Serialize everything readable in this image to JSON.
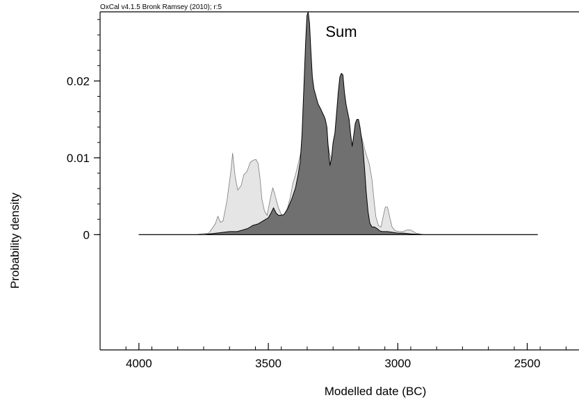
{
  "credit": "OxCal v4.1.5 Bronk Ramsey (2010); r:5",
  "chart_data": {
    "type": "area",
    "title": "Sum",
    "xlabel": "Modelled date (BC)",
    "ylabel": "Probability density",
    "x_reversed": true,
    "xlim": [
      4150,
      2300
    ],
    "ylim": [
      -0.015,
      0.029
    ],
    "x_ticks": [
      4000,
      3500,
      3000,
      2500
    ],
    "x_tick_labels": [
      "4000",
      "3500",
      "3000",
      "2500"
    ],
    "y_ticks": [
      0,
      0.01,
      0.02
    ],
    "y_tick_labels": [
      "0",
      "0.01",
      "0.02"
    ],
    "baseline_range": [
      4000,
      2460
    ],
    "colors": {
      "prior_fill": "#e5e5e5",
      "prior_stroke": "#7a7a7a",
      "posterior_fill": "#707070",
      "posterior_stroke": "#000000",
      "axis": "#000000"
    },
    "series": [
      {
        "kind": "prior",
        "x": [
          4000,
          3780,
          3760,
          3730,
          3705,
          3695,
          3685,
          3675,
          3660,
          3645,
          3638,
          3628,
          3618,
          3605,
          3595,
          3583,
          3570,
          3558,
          3548,
          3540,
          3533,
          3525,
          3515,
          3505,
          3493,
          3483,
          3476,
          3468,
          3460,
          3448,
          3435,
          3425,
          3415,
          3405,
          3395,
          3385,
          3376,
          3366,
          3356,
          3346,
          3340,
          3335,
          3325,
          3315,
          3305,
          3295,
          3287,
          3280,
          3272,
          3264,
          3255,
          3247,
          3240,
          3232,
          3225,
          3217,
          3210,
          3202,
          3195,
          3187,
          3180,
          3172,
          3164,
          3157,
          3150,
          3142,
          3134,
          3127,
          3118,
          3110,
          3100,
          3092,
          3085,
          3075,
          3065,
          3056,
          3048,
          3040,
          3032,
          3022,
          3010,
          2995,
          2980,
          2965,
          2950,
          2940,
          2930,
          2918,
          2900,
          2460
        ],
        "y": [
          0,
          0,
          0.0001,
          0.0002,
          0.0014,
          0.0024,
          0.0016,
          0.0018,
          0.0044,
          0.0082,
          0.0106,
          0.0075,
          0.0058,
          0.0064,
          0.0078,
          0.0082,
          0.0094,
          0.0097,
          0.0098,
          0.0093,
          0.0076,
          0.0046,
          0.0031,
          0.0025,
          0.0046,
          0.0061,
          0.0054,
          0.0043,
          0.0034,
          0.0025,
          0.0026,
          0.0036,
          0.0049,
          0.0067,
          0.0078,
          0.0092,
          0.0105,
          0.0117,
          0.0124,
          0.0126,
          0.0114,
          0.0108,
          0.0102,
          0.01,
          0.0103,
          0.0117,
          0.0127,
          0.0136,
          0.0124,
          0.0106,
          0.0097,
          0.0092,
          0.0095,
          0.0103,
          0.0116,
          0.0127,
          0.0134,
          0.0137,
          0.013,
          0.0122,
          0.0114,
          0.0114,
          0.0124,
          0.013,
          0.0134,
          0.013,
          0.012,
          0.011,
          0.01,
          0.0092,
          0.0072,
          0.0046,
          0.0024,
          0.0012,
          0.001,
          0.0024,
          0.0036,
          0.0036,
          0.0024,
          0.001,
          0.0005,
          0.0004,
          0.0004,
          0.0006,
          0.0006,
          0.0004,
          0.0002,
          0.0001,
          0,
          0
        ]
      },
      {
        "kind": "posterior",
        "x": [
          4000,
          3750,
          3700,
          3650,
          3620,
          3600,
          3580,
          3560,
          3540,
          3520,
          3500,
          3490,
          3480,
          3470,
          3460,
          3440,
          3425,
          3410,
          3395,
          3385,
          3377,
          3370,
          3363,
          3356,
          3351,
          3346,
          3341,
          3336,
          3330,
          3324,
          3316,
          3308,
          3300,
          3293,
          3286,
          3280,
          3274,
          3268,
          3262,
          3256,
          3250,
          3243,
          3236,
          3230,
          3224,
          3218,
          3212,
          3206,
          3200,
          3194,
          3188,
          3182,
          3176,
          3170,
          3164,
          3158,
          3152,
          3146,
          3140,
          3134,
          3128,
          3122,
          3115,
          3108,
          3100,
          3090,
          3080,
          3070,
          3060,
          3040,
          3020,
          3000,
          2980,
          2950,
          2900,
          2460
        ],
        "y": [
          0,
          0,
          0.0002,
          0.0004,
          0.0004,
          0.0006,
          0.0008,
          0.0012,
          0.0014,
          0.0018,
          0.0022,
          0.0028,
          0.0035,
          0.0028,
          0.0025,
          0.0026,
          0.0034,
          0.0046,
          0.0061,
          0.0078,
          0.0095,
          0.013,
          0.019,
          0.025,
          0.0285,
          0.029,
          0.0275,
          0.024,
          0.0205,
          0.019,
          0.018,
          0.017,
          0.0165,
          0.016,
          0.0155,
          0.015,
          0.014,
          0.011,
          0.009,
          0.01,
          0.012,
          0.0132,
          0.016,
          0.0185,
          0.0205,
          0.021,
          0.0208,
          0.0185,
          0.017,
          0.016,
          0.015,
          0.013,
          0.0115,
          0.013,
          0.0145,
          0.015,
          0.015,
          0.014,
          0.0125,
          0.011,
          0.0085,
          0.0055,
          0.003,
          0.0015,
          0.001,
          0.001,
          0.0008,
          0.0005,
          0.0004,
          0.0004,
          0.0003,
          0.0002,
          0.0002,
          0.0001,
          0,
          0
        ]
      }
    ]
  }
}
